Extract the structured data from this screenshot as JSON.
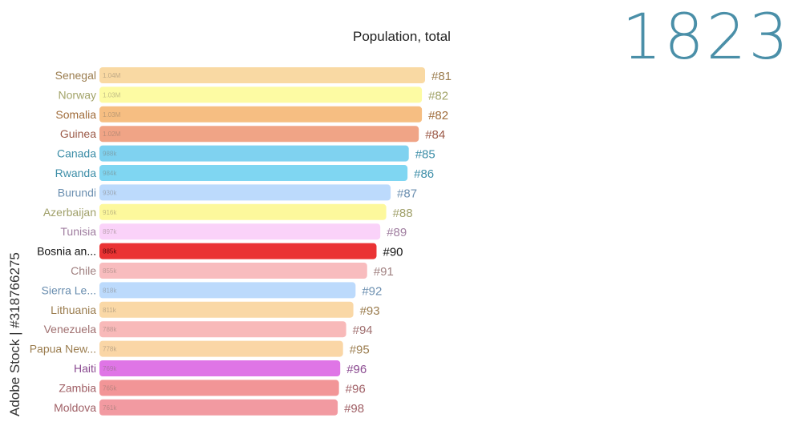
{
  "year": "1823",
  "watermark": "Adobe Stock | #318766275",
  "chart_data": {
    "type": "bar",
    "orientation": "horizontal",
    "title": "Population, total",
    "highlighted": "Bosnia an...",
    "categories": [
      "Senegal",
      "Norway",
      "Somalia",
      "Guinea",
      "Canada",
      "Rwanda",
      "Burundi",
      "Azerbaijan",
      "Tunisia",
      "Bosnia an...",
      "Chile",
      "Sierra Le...",
      "Lithuania",
      "Venezuela",
      "Papua New...",
      "Haiti",
      "Zambia",
      "Moldova"
    ],
    "values": [
      1040000,
      1030000,
      1030000,
      1020000,
      988000,
      984000,
      930000,
      916000,
      897000,
      885000,
      855000,
      818000,
      811000,
      788000,
      778000,
      769000,
      765000,
      761000
    ],
    "value_labels": [
      "1.04M",
      "1.03M",
      "1.03M",
      "1.02M",
      "988k",
      "984k",
      "930k",
      "916k",
      "897k",
      "885k",
      "855k",
      "818k",
      "811k",
      "788k",
      "778k",
      "769k",
      "765k",
      "761k"
    ],
    "ranks": [
      "#81",
      "#82",
      "#82",
      "#84",
      "#85",
      "#86",
      "#87",
      "#88",
      "#89",
      "#90",
      "#91",
      "#92",
      "#93",
      "#94",
      "#95",
      "#96",
      "#96",
      "#98"
    ],
    "colors": [
      "#f9d9a3",
      "#fdfba3",
      "#f6be82",
      "#f0a486",
      "#7fd2f0",
      "#7fd6f2",
      "#bcdafc",
      "#fdf89c",
      "#fad2f9",
      "#ea3334",
      "#f8bcbe",
      "#bcdafc",
      "#fad8a6",
      "#f8b9b9",
      "#fad6a6",
      "#df75e6",
      "#f29597",
      "#f29aa1"
    ],
    "label_colors": [
      "#9b7d4f",
      "#a3a46a",
      "#a06c3a",
      "#9c5a48",
      "#3d8ea8",
      "#3d8ea8",
      "#6b8fb0",
      "#a0a06a",
      "#a07ea0",
      "#111111",
      "#a08080",
      "#6b8fb0",
      "#9b7d4f",
      "#a07070",
      "#9b7d4f",
      "#8a4a90",
      "#a06066",
      "#a06066"
    ],
    "xlim": [
      0,
      1040000
    ]
  }
}
